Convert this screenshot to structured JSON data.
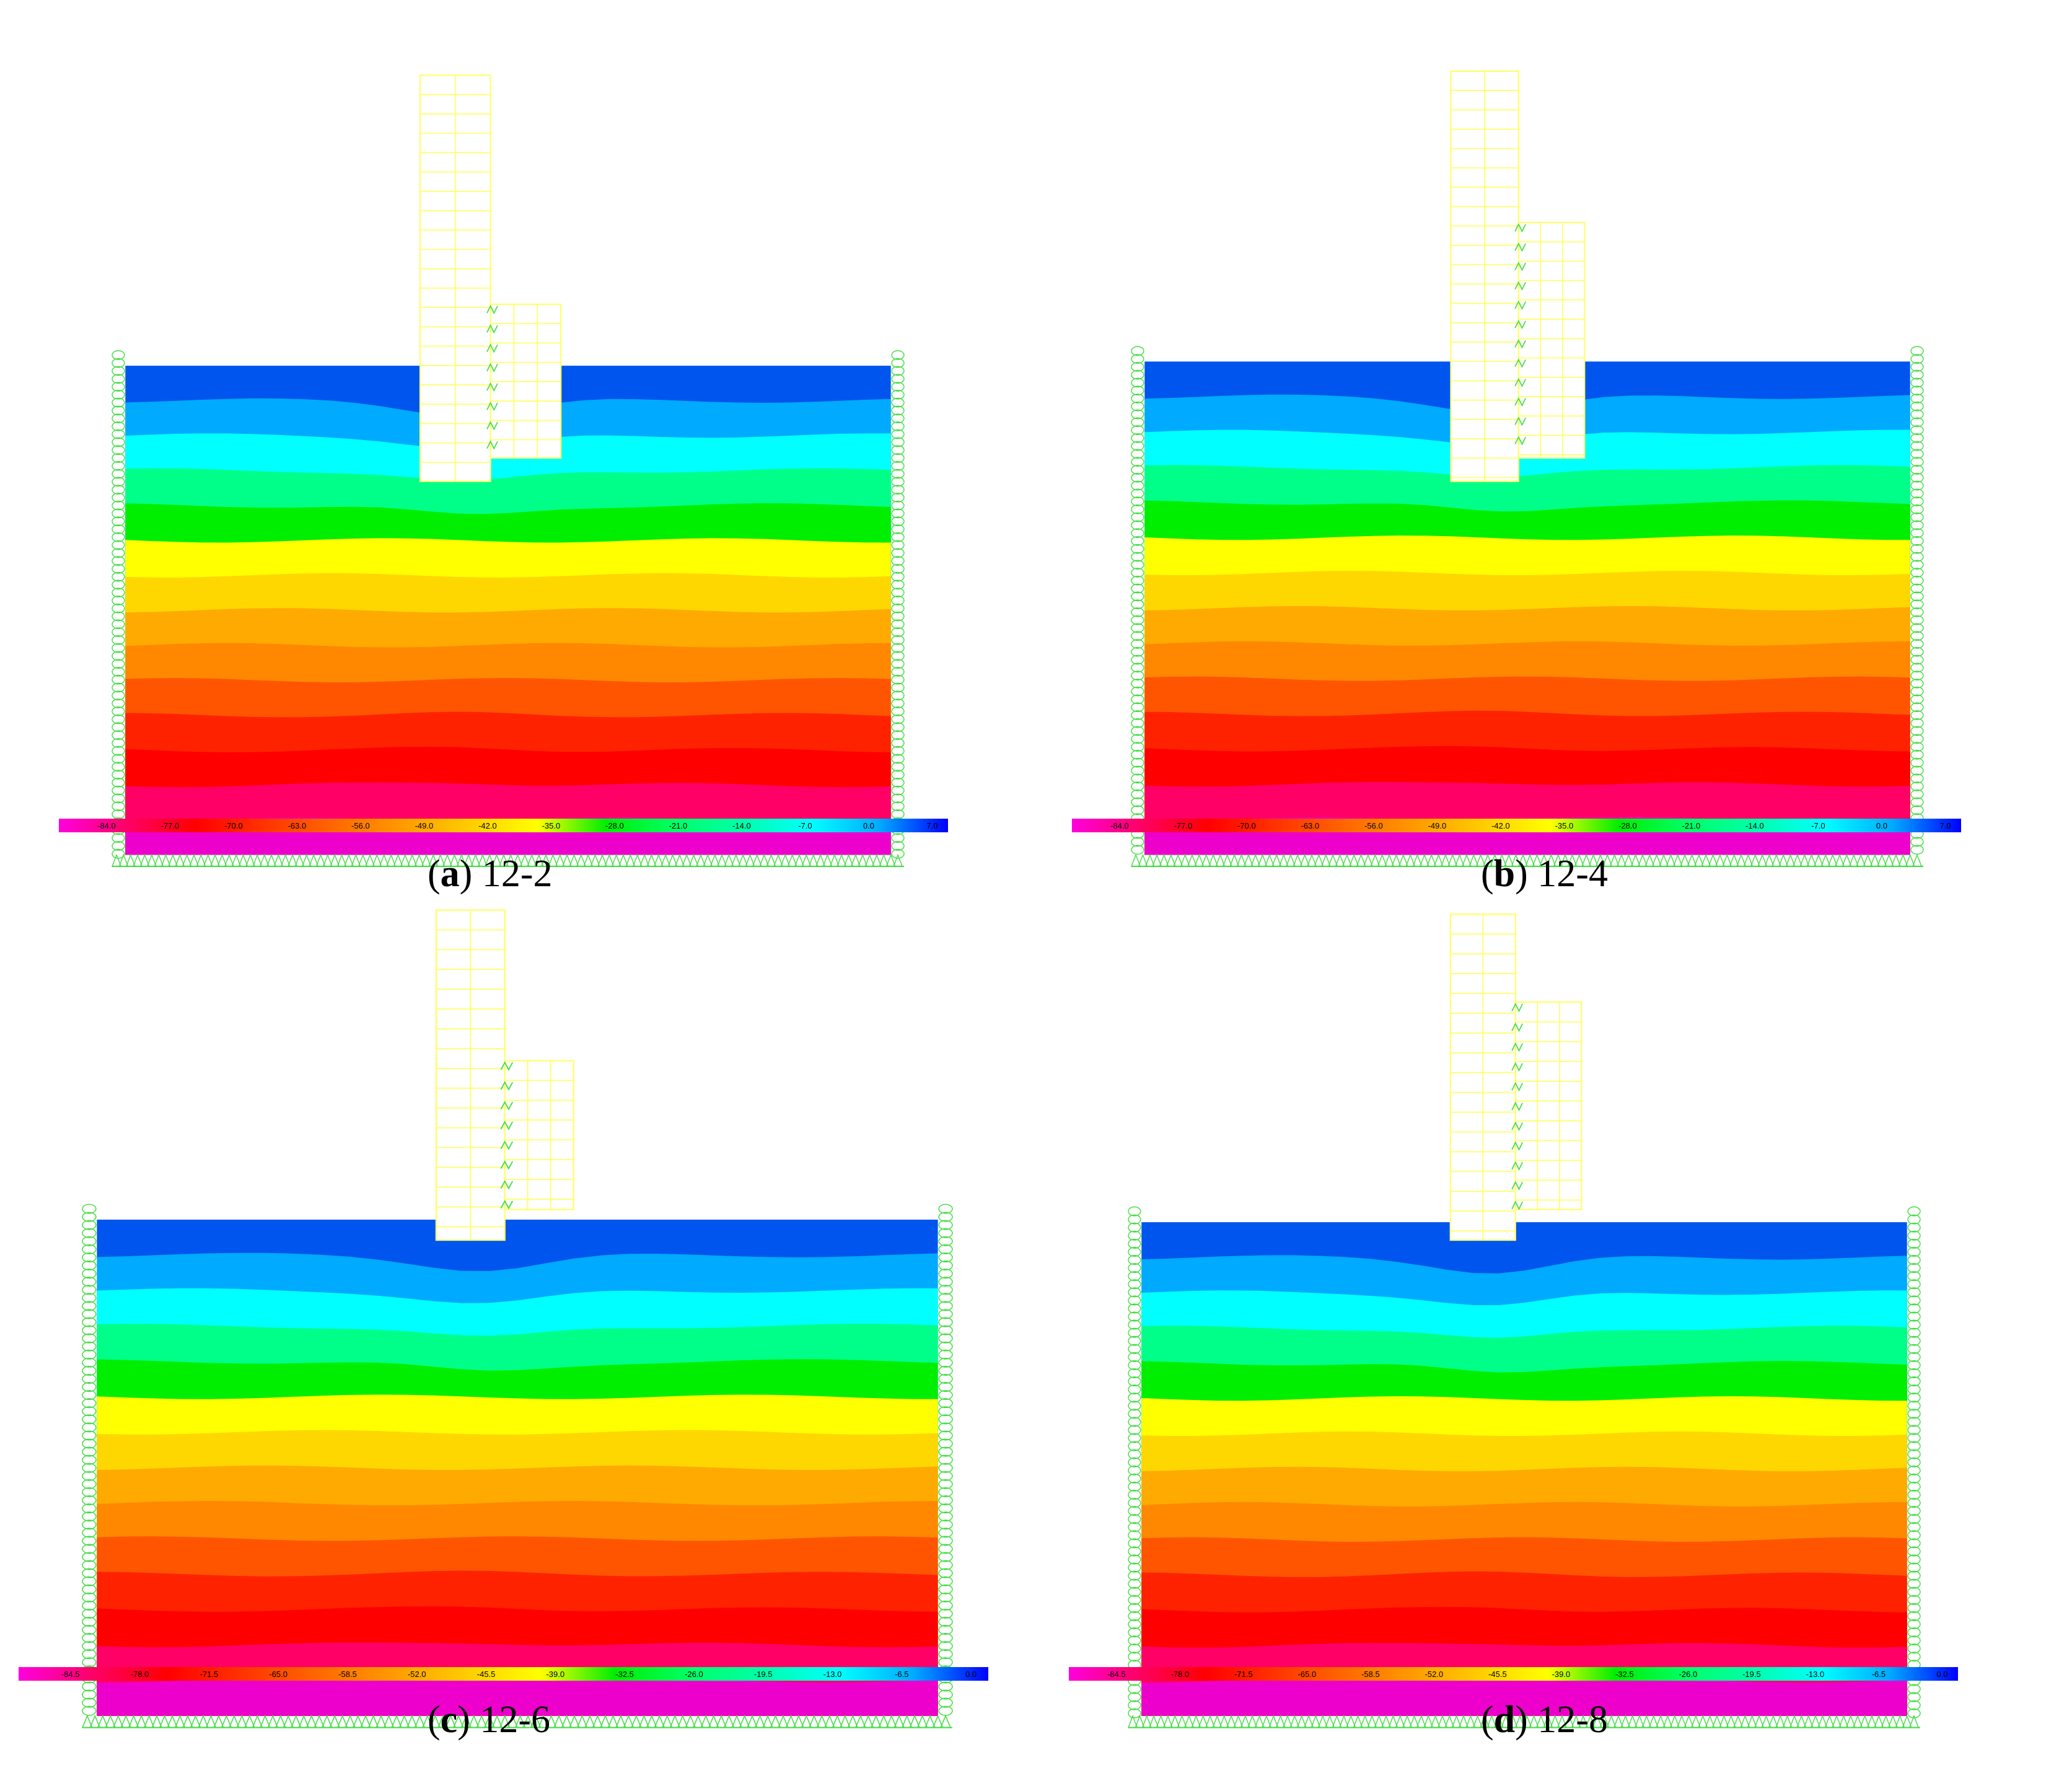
{
  "panels": [
    {
      "letter": "a",
      "label": "12-2",
      "scale": [
        "-84.0",
        "-77.0",
        "-70.0",
        "-63.0",
        "-56.0",
        "-49.0",
        "-42.0",
        "-35.0",
        "-28.0",
        "-21.0",
        "-14.0",
        "-7.0",
        "0.0",
        "7.0"
      ]
    },
    {
      "letter": "b",
      "label": "12-4",
      "scale": [
        "-84.0",
        "-77.0",
        "-70.0",
        "-63.0",
        "-56.0",
        "-49.0",
        "-42.0",
        "-35.0",
        "-28.0",
        "-21.0",
        "-14.0",
        "-7.0",
        "0.0",
        "7.0"
      ]
    },
    {
      "letter": "c",
      "label": "12-6",
      "scale": [
        "-84.5",
        "-78.0",
        "-71.5",
        "-65.0",
        "-58.5",
        "-52.0",
        "-45.5",
        "-39.0",
        "-32.5",
        "-26.0",
        "-19.5",
        "-13.0",
        "-6.5",
        "0.0"
      ]
    },
    {
      "letter": "d",
      "label": "12-8",
      "scale": [
        "-84.5",
        "-78.0",
        "-71.5",
        "-65.0",
        "-58.5",
        "-52.0",
        "-45.5",
        "-39.0",
        "-32.5",
        "-26.0",
        "-19.5",
        "-13.0",
        "-6.5",
        "0.0"
      ]
    }
  ],
  "colors": {
    "bands": [
      "#0055ee",
      "#00aaff",
      "#00ffff",
      "#00ff88",
      "#00ee00",
      "#ffff00",
      "#ffd700",
      "#ffaa00",
      "#ff8800",
      "#ff5500",
      "#ff2200",
      "#ff0000",
      "#ff0066",
      "#ee00cc"
    ],
    "scale": [
      "#ff00dd",
      "#ff0066",
      "#ff0000",
      "#ff3300",
      "#ff6600",
      "#ff9900",
      "#ffcc00",
      "#ffff00",
      "#00ee00",
      "#00ff66",
      "#00ffaa",
      "#00ffff",
      "#00aaff",
      "#0000ff"
    ],
    "structure": "#ffff66",
    "boundary": "#44dd44"
  }
}
